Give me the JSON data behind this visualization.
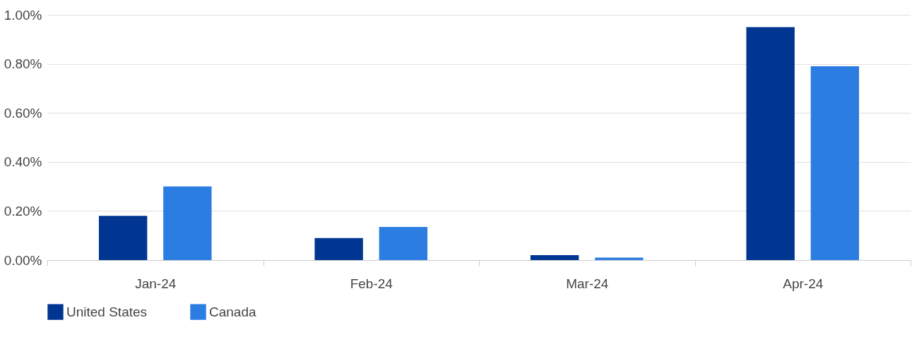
{
  "chart_data": {
    "type": "bar",
    "categories": [
      "Jan-24",
      "Feb-24",
      "Mar-24",
      "Apr-24"
    ],
    "series": [
      {
        "name": "United States",
        "color": "#003591",
        "values": [
          0.18,
          0.09,
          0.02,
          0.95
        ]
      },
      {
        "name": "Canada",
        "color": "#2b7de1",
        "values": [
          0.3,
          0.135,
          0.01,
          0.79
        ]
      }
    ],
    "ylim": [
      0,
      1.0
    ],
    "yticks": [
      {
        "value": 0,
        "label": "0.00%"
      },
      {
        "value": 0.2,
        "label": "0.20%"
      },
      {
        "value": 0.4,
        "label": "0.40%"
      },
      {
        "value": 0.6,
        "label": "0.60%"
      },
      {
        "value": 0.8,
        "label": "0.80%"
      },
      {
        "value": 1.0,
        "label": "1.00%"
      }
    ],
    "grid": "y",
    "legend": "bottom left"
  }
}
